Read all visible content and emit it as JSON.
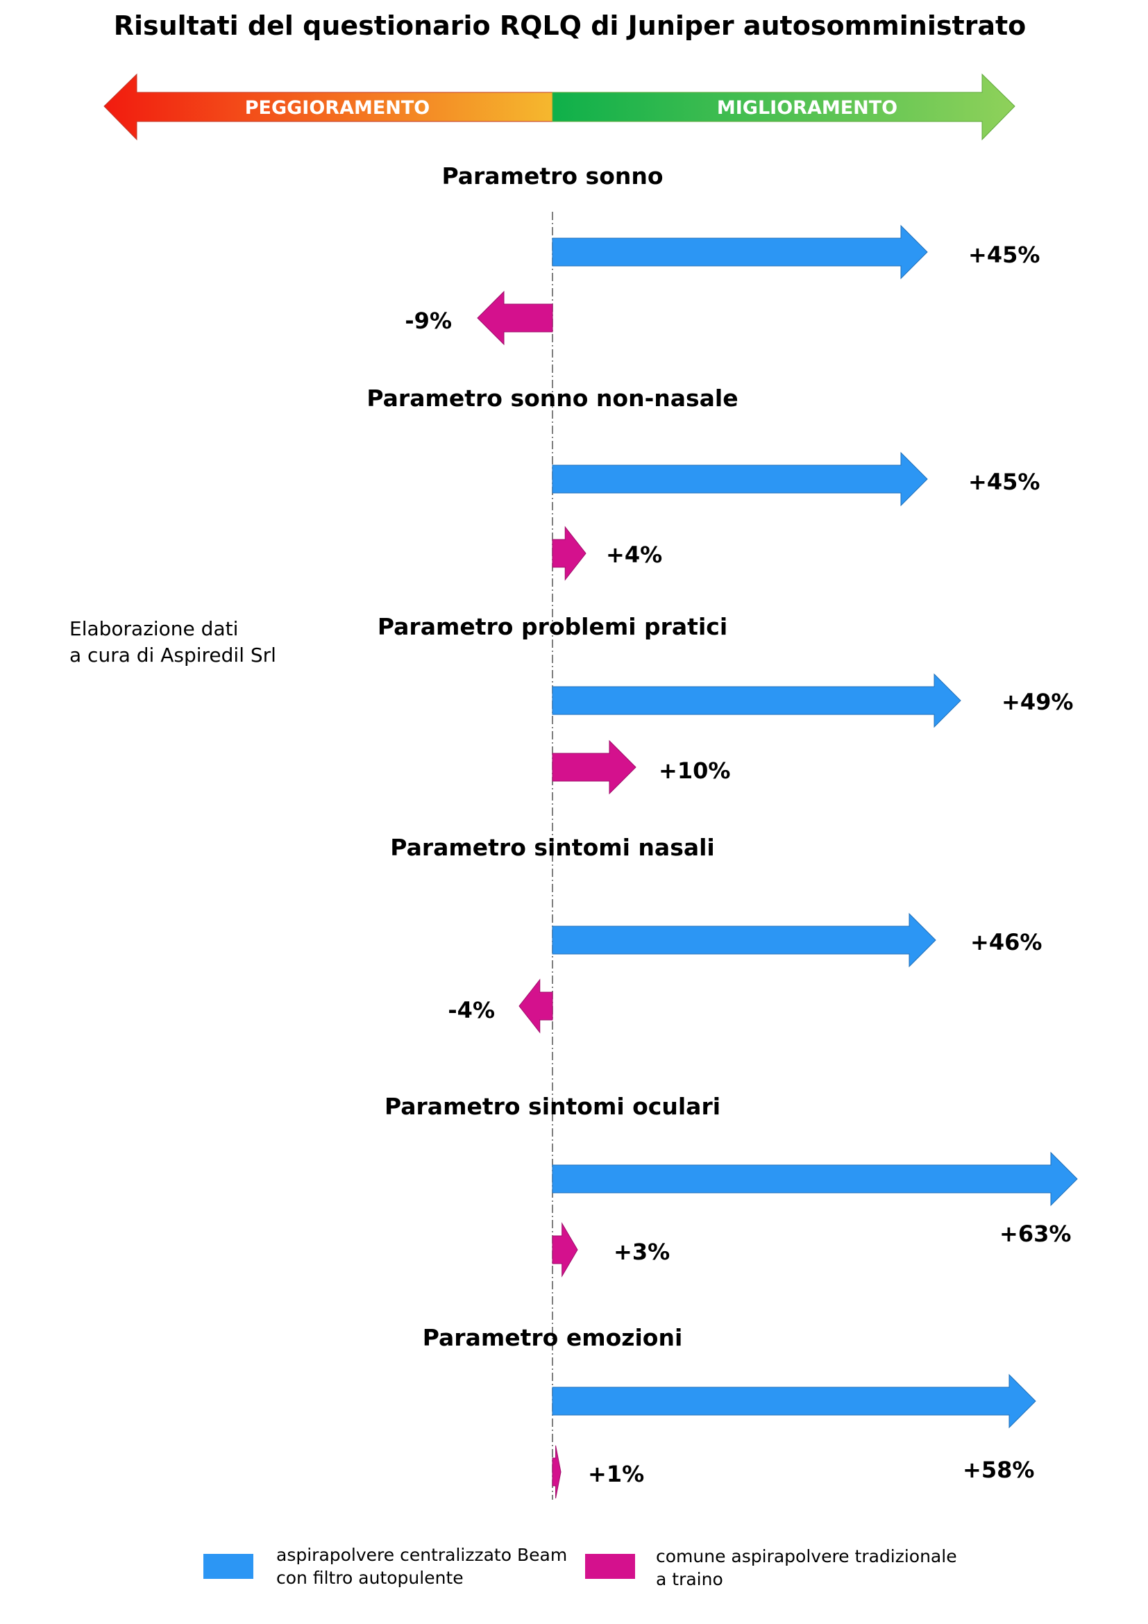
{
  "title": "Risultati del questionario RQLQ di Juniper autosomministrato",
  "direction_bar": {
    "left_label": "PEGGIORAMENTO",
    "right_label": "MIGLIORAMENTO",
    "left_colors": [
      "#f21b0f",
      "#f5b82e"
    ],
    "right_colors": [
      "#0fb04a",
      "#8fd15a"
    ]
  },
  "note": [
    "Elaborazione dati",
    "a cura di Aspiredil Srl"
  ],
  "colors": {
    "beam": "#2c96f4",
    "traditional": "#d4118d"
  },
  "chart_data": {
    "type": "bar",
    "title": "Risultati del questionario RQLQ di Juniper autosomministrato",
    "unit": "%",
    "categories": [
      "Parametro sonno",
      "Parametro sonno non-nasale",
      "Parametro problemi pratici",
      "Parametro sintomi nasali",
      "Parametro sintomi oculari",
      "Parametro emozioni"
    ],
    "series": [
      {
        "name": "aspirapolvere centralizzato Beam con filtro autopulente",
        "color": "#2c96f4",
        "values": [
          45,
          45,
          49,
          46,
          63,
          58
        ],
        "labels": [
          "+45%",
          "+45%",
          "+49%",
          "+46%",
          "+63%",
          "+58%"
        ]
      },
      {
        "name": "comune aspirapolvere tradizionale a traino",
        "color": "#d4118d",
        "values": [
          -9,
          4,
          10,
          -4,
          3,
          1
        ],
        "labels": [
          "-9%",
          "+4%",
          "+10%",
          "-4%",
          "+3%",
          "+1%"
        ]
      }
    ]
  },
  "legend": [
    {
      "lines": [
        "aspirapolvere centralizzato Beam",
        "con filtro autopulente"
      ],
      "color": "#2c96f4"
    },
    {
      "lines": [
        "comune aspirapolvere tradizionale",
        "a traino"
      ],
      "color": "#d4118d"
    }
  ]
}
